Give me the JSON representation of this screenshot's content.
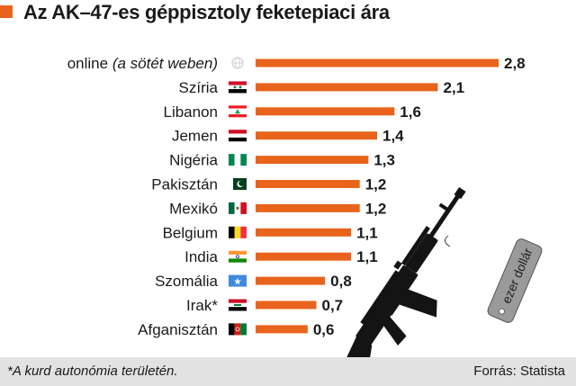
{
  "title": "Az AK–47-es géppisztoly feketepiaci ára",
  "footer": {
    "footnote": "*A kurd autonómia területén.",
    "source": "Forrás: Statista"
  },
  "colors": {
    "bar": "#e8641c",
    "title_marker": "#e8641c",
    "footer_bg": "#e2e2e2"
  },
  "tag_label": "ezer dollár",
  "chart_data": {
    "type": "bar",
    "orientation": "horizontal",
    "title": "Az AK–47-es géppisztoly feketepiaci ára",
    "categories": [
      "online (a sötét weben)",
      "Szíria",
      "Libanon",
      "Jemen",
      "Nigéria",
      "Pakisztán",
      "Mexikó",
      "Belgium",
      "India",
      "Szomália",
      "Irak*",
      "Afganisztán"
    ],
    "category_parts": [
      [
        "online ",
        "(a sötét weben)"
      ],
      [
        "Szíria"
      ],
      [
        "Libanon"
      ],
      [
        "Jemen"
      ],
      [
        "Nigéria"
      ],
      [
        "Pakisztán"
      ],
      [
        "Mexikó"
      ],
      [
        "Belgium"
      ],
      [
        "India"
      ],
      [
        "Szomália"
      ],
      [
        "Irak*"
      ],
      [
        "Afganisztán"
      ]
    ],
    "values": [
      2.8,
      2.1,
      1.6,
      1.4,
      1.3,
      1.2,
      1.2,
      1.1,
      1.1,
      0.8,
      0.7,
      0.6
    ],
    "value_labels": [
      "2,8",
      "2,1",
      "1,6",
      "1,4",
      "1,3",
      "1,2",
      "1,2",
      "1,1",
      "1,1",
      "0,8",
      "0,7",
      "0,6"
    ],
    "flags": [
      "globe-icon",
      "syria-flag-icon",
      "lebanon-flag-icon",
      "yemen-flag-icon",
      "nigeria-flag-icon",
      "pakistan-flag-icon",
      "mexico-flag-icon",
      "belgium-flag-icon",
      "india-flag-icon",
      "somalia-flag-icon",
      "iraq-flag-icon",
      "afghanistan-flag-icon"
    ],
    "unit": "ezer dollár",
    "xlim": [
      0,
      2.8
    ],
    "grid": false
  }
}
